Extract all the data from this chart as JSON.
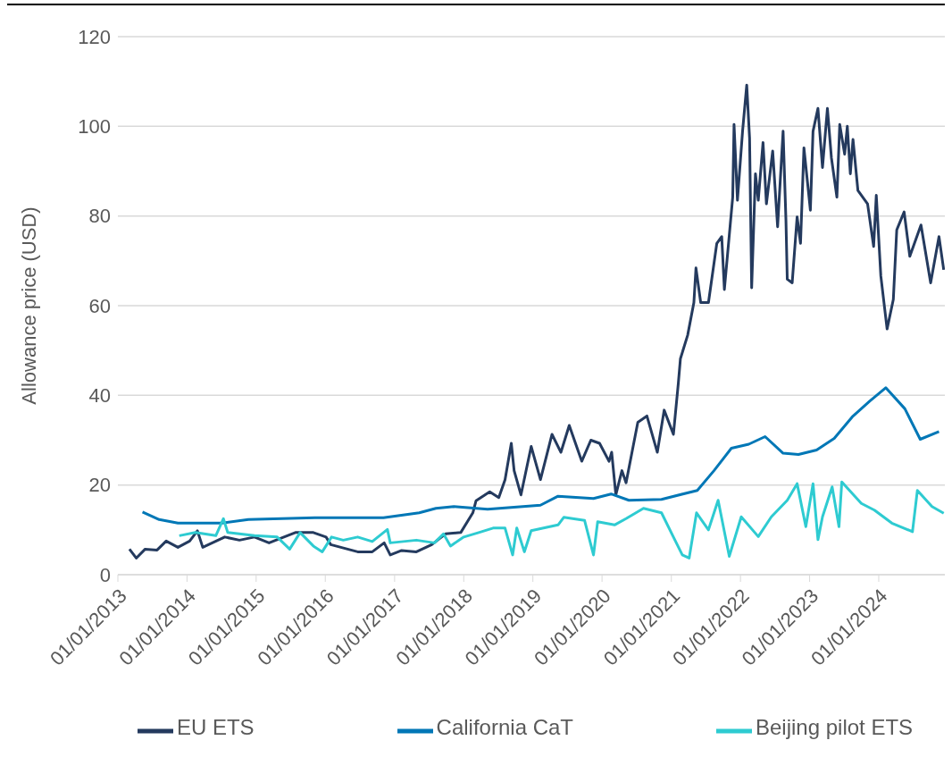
{
  "chart_data": {
    "type": "line",
    "ylabel": "Allowance price (USD)",
    "xlim": [
      "2013-01-01",
      "2024-12-15"
    ],
    "ylim": [
      0,
      120
    ],
    "yticks": [
      0,
      20,
      40,
      60,
      80,
      100,
      120
    ],
    "xticks": [
      {
        "value": "2013-01-01",
        "label": "01/01/2013"
      },
      {
        "value": "2014-01-01",
        "label": "01/01/2014"
      },
      {
        "value": "2015-01-01",
        "label": "01/01/2015"
      },
      {
        "value": "2016-01-01",
        "label": "01/01/2016"
      },
      {
        "value": "2017-01-01",
        "label": "01/01/2017"
      },
      {
        "value": "2018-01-01",
        "label": "01/01/2018"
      },
      {
        "value": "2019-01-01",
        "label": "01/01/2019"
      },
      {
        "value": "2020-01-01",
        "label": "01/01/2020"
      },
      {
        "value": "2021-01-01",
        "label": "01/01/2021"
      },
      {
        "value": "2022-01-01",
        "label": "01/01/2022"
      },
      {
        "value": "2023-01-01",
        "label": "01/01/2023"
      },
      {
        "value": "2024-01-01",
        "label": "01/01/2024"
      }
    ],
    "grid": "y",
    "legend": "bottom",
    "marker": "none",
    "line_style": "solid",
    "series": [
      {
        "name": "EU ETS",
        "color": "#243a5e",
        "x": [
          "2013-03-03",
          "2013-04-08",
          "2013-05-25",
          "2013-07-27",
          "2013-09-13",
          "2013-11-14",
          "2014-01-15",
          "2014-02-25",
          "2014-03-25",
          "2014-07-19",
          "2014-10-05",
          "2014-12-23",
          "2015-03-10",
          "2015-07-27",
          "2015-10-30",
          "2016-01-05",
          "2016-01-30",
          "2016-06-20",
          "2016-09-05",
          "2016-11-07",
          "2016-12-09",
          "2017-02-07",
          "2017-04-26",
          "2017-07-16",
          "2017-09-27",
          "2017-12-16",
          "2018-02-18",
          "2018-03-07",
          "2018-05-18",
          "2018-07-05",
          "2018-08-07",
          "2018-09-09",
          "2018-09-24",
          "2018-10-30",
          "2018-12-23",
          "2019-02-10",
          "2019-04-12",
          "2019-05-29",
          "2019-07-12",
          "2019-09-16",
          "2019-11-03",
          "2019-12-19",
          "2020-02-07",
          "2020-02-21",
          "2020-03-14",
          "2020-04-15",
          "2020-05-07",
          "2020-07-08",
          "2020-08-25",
          "2020-10-19",
          "2020-11-24",
          "2021-01-12",
          "2021-02-07",
          "2021-02-18",
          "2021-03-28",
          "2021-04-30",
          "2021-05-11",
          "2021-06-05",
          "2021-07-16",
          "2021-08-29",
          "2021-09-24",
          "2021-10-08",
          "2021-11-21",
          "2021-11-28",
          "2021-12-16",
          "2022-01-12",
          "2022-02-03",
          "2022-02-18",
          "2022-03-01",
          "2022-03-21",
          "2022-04-05",
          "2022-04-30",
          "2022-05-18",
          "2022-06-20",
          "2022-07-16",
          "2022-08-14",
          "2022-08-29",
          "2022-09-05",
          "2022-10-01",
          "2022-10-27",
          "2022-11-14",
          "2022-12-02",
          "2023-01-05",
          "2023-01-19",
          "2023-02-14",
          "2023-03-10",
          "2023-04-05",
          "2023-04-26",
          "2023-05-25",
          "2023-06-09",
          "2023-07-05",
          "2023-07-19",
          "2023-08-04",
          "2023-08-18",
          "2023-09-13",
          "2023-11-03",
          "2023-12-05",
          "2023-12-19",
          "2024-01-12",
          "2024-02-14",
          "2024-03-18",
          "2024-04-05",
          "2024-05-14",
          "2024-06-13",
          "2024-08-11",
          "2024-10-01",
          "2024-11-14",
          "2024-12-09"
        ],
        "values": [
          5.7,
          3.7,
          5.7,
          5.5,
          7.5,
          6.1,
          7.5,
          9.8,
          6.1,
          8.4,
          7.7,
          8.4,
          7.1,
          9.4,
          9.4,
          8.4,
          6.7,
          5.1,
          5.1,
          7.1,
          4.4,
          5.4,
          5.1,
          6.7,
          9.1,
          9.4,
          13.8,
          16.5,
          18.5,
          17.2,
          21.2,
          29.3,
          23.2,
          17.8,
          28.6,
          21.2,
          31.3,
          27.3,
          33.3,
          25.3,
          30.0,
          29.3,
          25.3,
          27.3,
          17.8,
          23.2,
          20.5,
          34.0,
          35.4,
          27.3,
          36.7,
          31.3,
          42.8,
          48.2,
          53.4,
          60.7,
          68.4,
          60.7,
          60.7,
          73.9,
          75.4,
          63.6,
          84.2,
          100.4,
          83.5,
          98.9,
          109.2,
          97.4,
          64.0,
          89.4,
          83.5,
          96.4,
          82.7,
          94.5,
          77.6,
          98.9,
          79.1,
          65.9,
          65.1,
          79.8,
          73.9,
          95.2,
          81.3,
          98.9,
          104.0,
          90.8,
          104.0,
          93.0,
          84.2,
          100.4,
          93.8,
          100.0,
          89.4,
          97.1,
          85.7,
          82.7,
          73.2,
          84.6,
          66.6,
          54.8,
          61.4,
          76.9,
          80.9,
          71.0,
          78.0,
          65.1,
          75.4,
          68.0
        ]
      },
      {
        "name": "California CaT",
        "color": "#0077b6",
        "x": [
          "2013-05-11",
          "2013-08-07",
          "2013-11-14",
          "2014-07-05",
          "2014-11-21",
          "2015-11-07",
          "2016-11-03",
          "2017-05-11",
          "2017-08-07",
          "2017-11-10",
          "2018-05-07",
          "2019-02-10",
          "2019-05-14",
          "2019-11-17",
          "2020-02-18",
          "2020-05-22",
          "2020-11-10",
          "2021-05-18",
          "2021-08-14",
          "2021-11-14",
          "2022-02-14",
          "2022-05-11",
          "2022-08-14",
          "2022-11-03",
          "2023-02-07",
          "2023-05-11",
          "2023-08-14",
          "2023-11-14",
          "2024-02-07",
          "2024-05-18",
          "2024-08-07",
          "2024-11-14"
        ],
        "values": [
          14.0,
          12.3,
          11.5,
          11.5,
          12.3,
          12.7,
          12.7,
          13.8,
          14.8,
          15.2,
          14.6,
          15.5,
          17.5,
          17.0,
          18.0,
          16.6,
          16.8,
          18.8,
          23.2,
          28.2,
          29.1,
          30.8,
          27.1,
          26.8,
          27.8,
          30.4,
          35.2,
          38.7,
          41.7,
          37.0,
          30.2,
          31.9
        ]
      },
      {
        "name": "Beijing pilot ETS",
        "color": "#2ecbd1",
        "x": [
          "2013-11-21",
          "2014-02-14",
          "2014-06-02",
          "2014-07-12",
          "2014-08-04",
          "2014-12-23",
          "2015-04-22",
          "2015-06-27",
          "2015-08-21",
          "2015-10-30",
          "2015-12-16",
          "2016-02-03",
          "2016-04-05",
          "2016-06-20",
          "2016-09-05",
          "2016-11-24",
          "2016-12-09",
          "2017-04-26",
          "2017-07-30",
          "2017-09-16",
          "2017-10-23",
          "2018-01-01",
          "2018-03-21",
          "2018-06-05",
          "2018-08-07",
          "2018-09-16",
          "2018-10-08",
          "2018-11-17",
          "2018-12-23",
          "2019-05-14",
          "2019-06-13",
          "2019-10-01",
          "2019-11-17",
          "2019-12-09",
          "2020-03-07",
          "2020-05-07",
          "2020-08-07",
          "2020-11-10",
          "2021-01-12",
          "2021-02-28",
          "2021-04-05",
          "2021-05-14",
          "2021-07-16",
          "2021-09-05",
          "2021-11-03",
          "2022-01-05",
          "2022-04-05",
          "2022-06-13",
          "2022-09-05",
          "2022-10-27",
          "2022-12-12",
          "2023-01-19",
          "2023-02-14",
          "2023-03-10",
          "2023-04-30",
          "2023-06-05",
          "2023-06-20",
          "2023-10-01",
          "2023-12-09",
          "2024-03-10",
          "2024-06-27",
          "2024-07-23",
          "2024-10-08",
          "2024-12-09"
        ],
        "values": [
          8.7,
          9.4,
          8.7,
          12.5,
          9.4,
          8.7,
          8.4,
          5.7,
          9.4,
          6.4,
          5.1,
          8.4,
          7.7,
          8.4,
          7.4,
          10.1,
          7.1,
          7.7,
          7.1,
          9.1,
          6.4,
          8.4,
          9.4,
          10.4,
          10.4,
          4.4,
          10.4,
          5.1,
          9.8,
          11.1,
          12.8,
          12.1,
          4.4,
          11.8,
          11.1,
          12.5,
          14.8,
          13.8,
          8.4,
          4.4,
          3.7,
          13.8,
          10.0,
          16.6,
          4.1,
          12.9,
          8.5,
          12.9,
          16.6,
          20.3,
          10.7,
          20.3,
          7.8,
          12.9,
          19.6,
          10.7,
          20.7,
          15.9,
          14.4,
          11.5,
          9.6,
          18.8,
          15.2,
          13.7
        ]
      }
    ]
  }
}
